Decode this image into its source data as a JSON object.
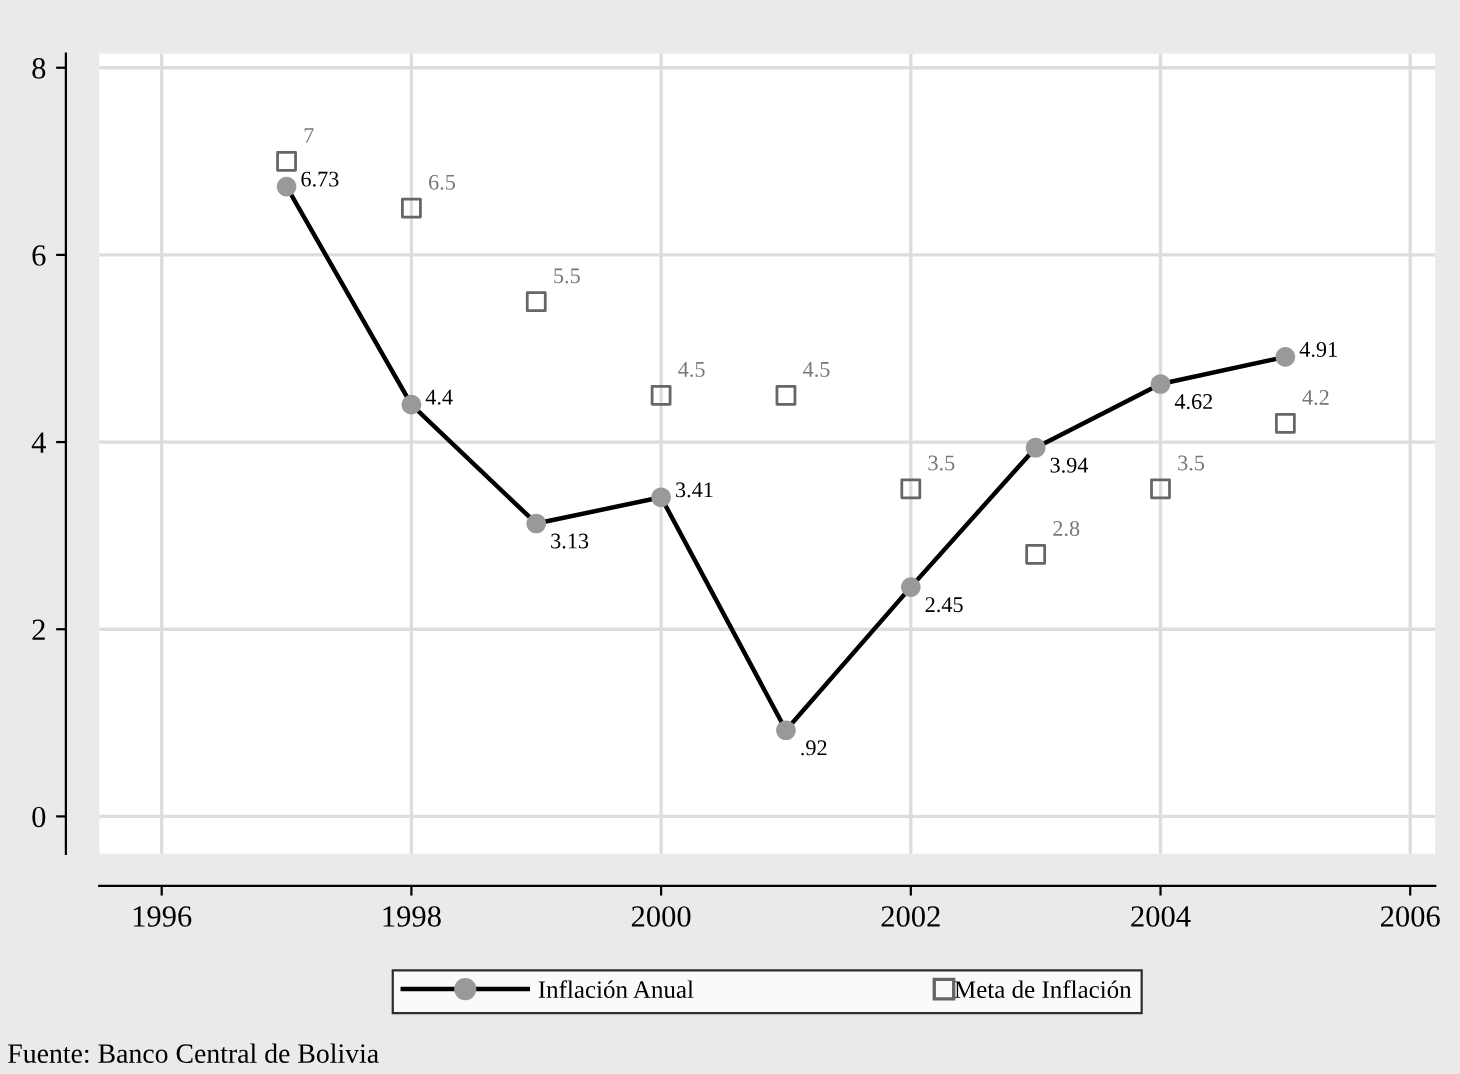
{
  "chart_data": {
    "type": "line",
    "x": [
      1997,
      1998,
      1999,
      2000,
      2001,
      2002,
      2003,
      2004,
      2005
    ],
    "series": [
      {
        "name": "Inflación Anual",
        "color": "#000000",
        "marker": "circle",
        "values": [
          6.73,
          4.4,
          3.13,
          3.41,
          0.92,
          2.45,
          3.94,
          4.62,
          4.91
        ],
        "value_labels": [
          "6.73",
          "4.4",
          "3.13",
          "3.41",
          ".92",
          "2.45",
          "3.94",
          "4.62",
          "4.91"
        ]
      },
      {
        "name": "Meta de Inflación",
        "type": "scatter",
        "color": "#666666",
        "marker": "square",
        "values": [
          7,
          6.5,
          5.5,
          4.5,
          4.5,
          3.5,
          2.8,
          3.5,
          4.2
        ],
        "value_labels": [
          "7",
          "6.5",
          "5.5",
          "4.5",
          "4.5",
          "3.5",
          "2.8",
          "3.5",
          "4.2"
        ]
      }
    ],
    "xlim": [
      1995.5,
      2006.2
    ],
    "xticks": [
      1996,
      1998,
      2000,
      2002,
      2004,
      2006
    ],
    "ylim": [
      -0.4,
      8.15
    ],
    "yticks": [
      0,
      2,
      4,
      6,
      8
    ],
    "grid": true,
    "legend": "bottom",
    "annotations": [
      "Fuente: Banco Central de Bolivia"
    ]
  }
}
